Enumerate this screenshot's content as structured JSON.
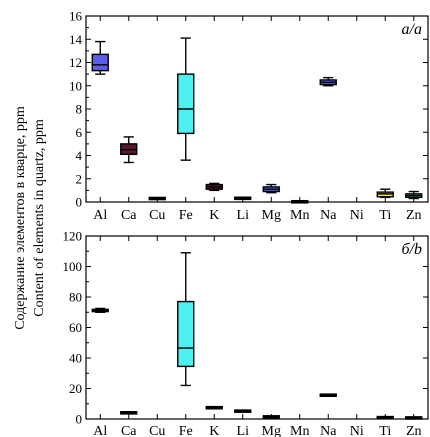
{
  "ylabel_lines": [
    "Содержание элементов в кварце, ppm",
    "Content of elements in quartz, ppm"
  ],
  "chart_data": [
    {
      "type": "box",
      "panel_label": "а/a",
      "categories": [
        "Al",
        "Ca",
        "Cu",
        "Fe",
        "K",
        "Li",
        "Mg",
        "Mn",
        "Na",
        "Ni",
        "Ti",
        "Zn"
      ],
      "ylim": [
        0,
        16
      ],
      "yticks": [
        0,
        2,
        4,
        6,
        8,
        10,
        12,
        14,
        16
      ],
      "boxes": [
        {
          "cat": "Al",
          "min": 11.0,
          "q1": 11.3,
          "median": 11.8,
          "q3": 12.7,
          "max": 13.8,
          "color": "#5b5ee6"
        },
        {
          "cat": "Ca",
          "min": 3.4,
          "q1": 4.1,
          "median": 4.5,
          "q3": 5.0,
          "max": 5.6,
          "color": "#5a1530"
        },
        {
          "cat": "Cu",
          "min": 0.25,
          "q1": 0.27,
          "median": 0.3,
          "q3": 0.33,
          "max": 0.35,
          "color": "#1a1a1a"
        },
        {
          "cat": "Fe",
          "min": 3.6,
          "q1": 5.9,
          "median": 8.0,
          "q3": 11.0,
          "max": 14.1,
          "color": "#4df0ee"
        },
        {
          "cat": "K",
          "min": 1.0,
          "q1": 1.1,
          "median": 1.3,
          "q3": 1.5,
          "max": 1.6,
          "color": "#5a1530"
        },
        {
          "cat": "Li",
          "min": 0.25,
          "q1": 0.28,
          "median": 0.32,
          "q3": 0.36,
          "max": 0.4,
          "color": "#5a1530"
        },
        {
          "cat": "Mg",
          "min": 0.8,
          "q1": 0.9,
          "median": 1.1,
          "q3": 1.3,
          "max": 1.5,
          "color": "#5b5ee6"
        },
        {
          "cat": "Mn",
          "min": 0.0,
          "q1": 0.01,
          "median": 0.02,
          "q3": 0.03,
          "max": 0.05,
          "color": "#1a1a1a"
        },
        {
          "cat": "Na",
          "min": 10.0,
          "q1": 10.1,
          "median": 10.3,
          "q3": 10.5,
          "max": 10.7,
          "color": "#5b5ee6"
        },
        {
          "cat": "Ti",
          "min": 0.4,
          "q1": 0.45,
          "median": 0.7,
          "q3": 0.85,
          "max": 1.1,
          "color": "#efe04e"
        },
        {
          "cat": "Zn",
          "min": 0.3,
          "q1": 0.4,
          "median": 0.55,
          "q3": 0.7,
          "max": 0.9,
          "color": "#2aa5a3"
        }
      ]
    },
    {
      "type": "box",
      "panel_label": "б/b",
      "categories": [
        "Al",
        "Ca",
        "Cu",
        "Fe",
        "K",
        "Li",
        "Mg",
        "Mn",
        "Na",
        "Ni",
        "Ti",
        "Zn"
      ],
      "ylim": [
        0,
        120
      ],
      "yticks": [
        0,
        20,
        40,
        60,
        80,
        100,
        120
      ],
      "boxes": [
        {
          "cat": "Al",
          "min": 70.0,
          "q1": 70.5,
          "median": 71.0,
          "q3": 71.8,
          "max": 72.5,
          "color": "#5b5ee6"
        },
        {
          "cat": "Ca",
          "min": 3.5,
          "q1": 3.8,
          "median": 4.0,
          "q3": 4.3,
          "max": 4.6,
          "color": "#5a1530"
        },
        {
          "cat": "Fe",
          "min": 22.0,
          "q1": 34.5,
          "median": 46.5,
          "q3": 77.0,
          "max": 109.0,
          "color": "#4df0ee"
        },
        {
          "cat": "K",
          "min": 7.0,
          "q1": 7.2,
          "median": 7.4,
          "q3": 7.6,
          "max": 7.8,
          "color": "#5a1530"
        },
        {
          "cat": "Li",
          "min": 4.8,
          "q1": 5.0,
          "median": 5.1,
          "q3": 5.3,
          "max": 5.5,
          "color": "#5a1530"
        },
        {
          "cat": "Mg",
          "min": 1.0,
          "q1": 1.2,
          "median": 1.4,
          "q3": 1.6,
          "max": 1.8,
          "color": "#5b5ee6"
        },
        {
          "cat": "Na",
          "min": 15.0,
          "q1": 15.3,
          "median": 15.6,
          "q3": 15.9,
          "max": 16.2,
          "color": "#5b5ee6"
        },
        {
          "cat": "Ti",
          "min": 0.5,
          "q1": 0.7,
          "median": 0.9,
          "q3": 1.1,
          "max": 1.3,
          "color": "#efe04e"
        },
        {
          "cat": "Zn",
          "min": 0.4,
          "q1": 0.5,
          "median": 0.7,
          "q3": 0.9,
          "max": 1.1,
          "color": "#2aa5a3"
        }
      ]
    }
  ]
}
